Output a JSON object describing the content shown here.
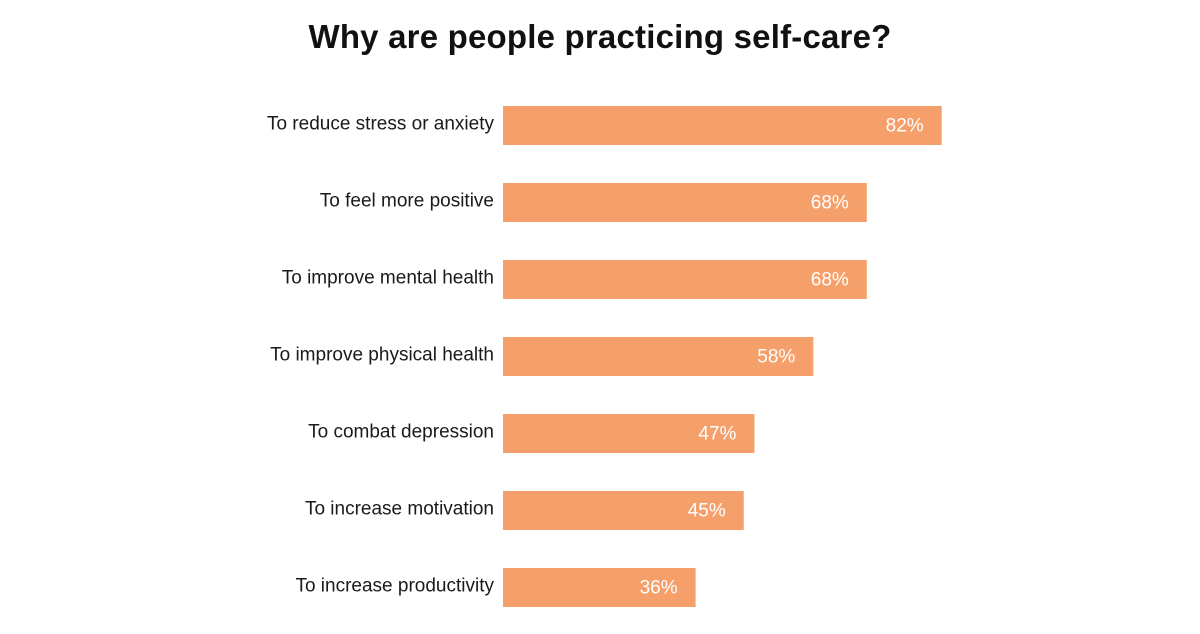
{
  "chart_data": {
    "type": "bar",
    "orientation": "horizontal",
    "title": "Why are people practicing self-care?",
    "xlabel": "",
    "ylabel": "",
    "categories": [
      "To reduce stress or anxiety",
      "To feel more positive",
      "To improve mental health",
      "To improve physical health",
      "To combat depression",
      "To increase motivation",
      "To increase productivity"
    ],
    "values": [
      82,
      68,
      68,
      58,
      47,
      45,
      36
    ],
    "value_labels": [
      "82%",
      "68%",
      "68%",
      "58%",
      "47%",
      "45%",
      "36%"
    ],
    "unit": "%",
    "xlim": [
      0,
      100
    ],
    "grid": false,
    "legend": "none",
    "bar_color": "#f5a06a"
  }
}
